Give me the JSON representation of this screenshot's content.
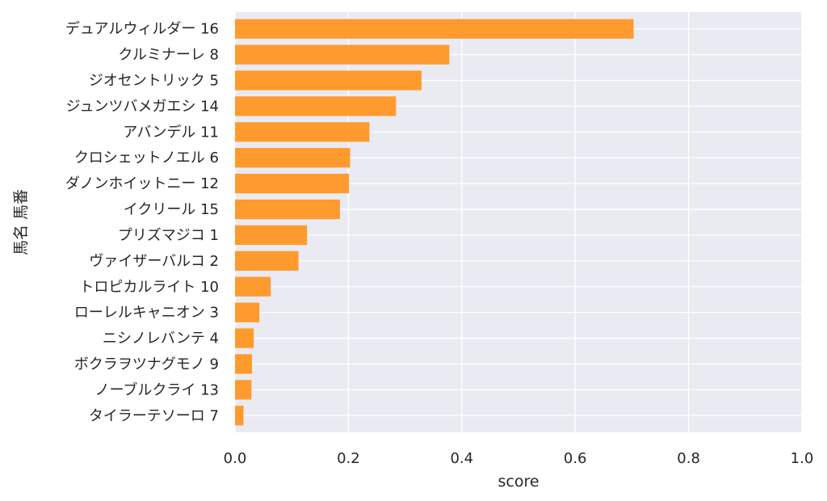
{
  "chart_data": {
    "type": "bar",
    "orientation": "horizontal",
    "categories": [
      "デュアルウィルダー 16",
      "クルミナーレ 8",
      "ジオセントリック 5",
      "ジュンツバメガエシ 14",
      "アバンデル 11",
      "クロシェットノエル 6",
      "ダノンホイットニー 12",
      "イクリール 15",
      "プリズマジコ 1",
      "ヴァイザーバルコ 2",
      "トロピカルライト 10",
      "ローレルキャニオン 3",
      "ニシノレバンテ 4",
      "ボクラヲツナグモノ 9",
      "ノーブルクライ 13",
      "タイラーテソーロ 7"
    ],
    "values": [
      0.703,
      0.378,
      0.329,
      0.284,
      0.237,
      0.203,
      0.201,
      0.185,
      0.127,
      0.112,
      0.063,
      0.043,
      0.033,
      0.03,
      0.029,
      0.015
    ],
    "xlabel": "score",
    "ylabel": "馬名 馬番",
    "xlim": [
      0,
      1.0
    ],
    "xticks": [
      "0.0",
      "0.2",
      "0.4",
      "0.6",
      "0.8",
      "1.0"
    ],
    "xtick_values": [
      0,
      0.2,
      0.4,
      0.6,
      0.8,
      1.0
    ],
    "grid": true,
    "colors": {
      "bar": "#ff9a2e",
      "background": "#eaeaf2",
      "grid": "#ffffff"
    }
  }
}
